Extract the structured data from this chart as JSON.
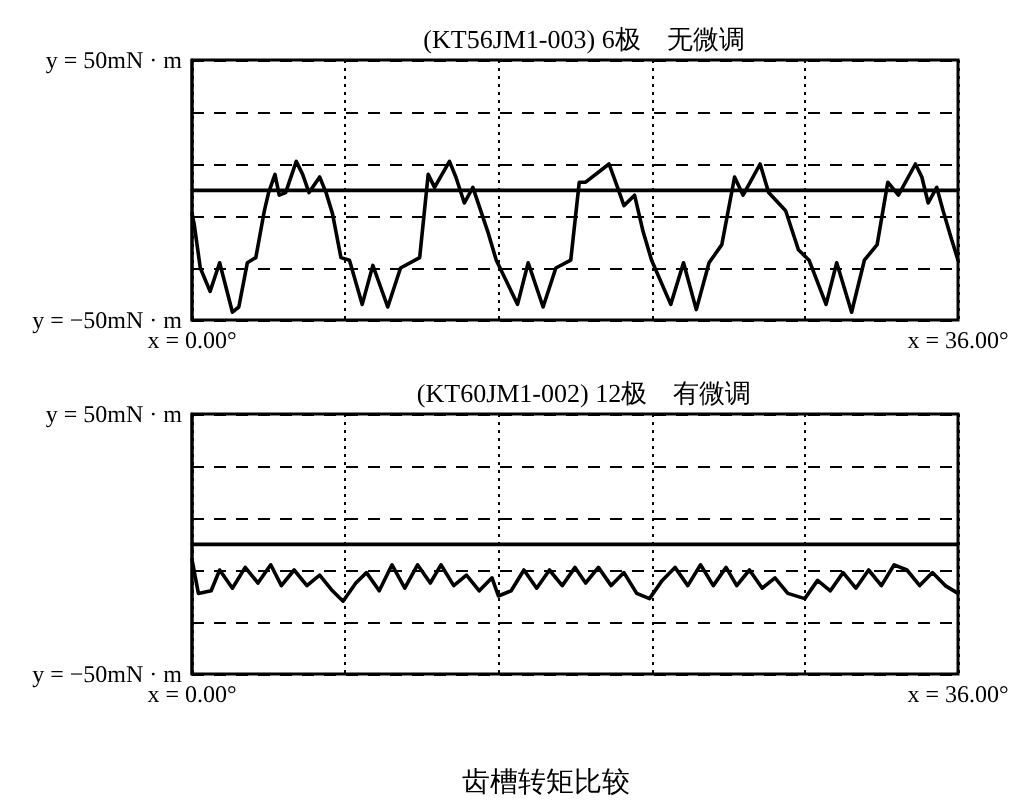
{
  "chart_data": [
    {
      "type": "line",
      "title": "(KT56JM1-003) 6极　无微调",
      "grid": true,
      "xlim": [
        0,
        36
      ],
      "ylim": [
        -50,
        50
      ],
      "xticks": [
        {
          "value": 0,
          "label": "x = 0.00°"
        },
        {
          "value": 7.2,
          "label": null
        },
        {
          "value": 14.4,
          "label": null
        },
        {
          "value": 21.6,
          "label": null
        },
        {
          "value": 28.8,
          "label": null
        },
        {
          "value": 36,
          "label": "x = 36.00°"
        }
      ],
      "yticks": [
        {
          "value": -50,
          "label": "y = −50mN · m"
        },
        {
          "value": -30,
          "label": null
        },
        {
          "value": -10,
          "label": null
        },
        {
          "value": 10,
          "label": null
        },
        {
          "value": 30,
          "label": null
        },
        {
          "value": 50,
          "label": "y = 50mN · m"
        }
      ],
      "ref_lines": [
        {
          "axis": "y",
          "value": 0,
          "label": null,
          "color": "#000000",
          "line_style": "solid"
        }
      ],
      "series": [
        {
          "color": "#000000",
          "x": [
            0,
            0.1,
            0.39,
            0.85,
            1.3,
            1.9,
            2.2,
            2.6,
            3.0,
            3.4,
            3.6,
            3.9,
            4.1,
            4.4,
            4.9,
            5.2,
            5.5,
            6.0,
            6.3,
            6.6,
            7.0,
            7.4,
            8.0,
            8.5,
            9.2,
            9.8,
            10.7,
            11.1,
            11.4,
            12.1,
            12.4,
            12.8,
            13.2,
            13.9,
            14.3,
            15.3,
            15.8,
            16.5,
            17.1,
            17.8,
            18.2,
            18.5,
            19.6,
            20.0,
            20.3,
            20.8,
            21.2,
            21.6,
            22.5,
            23.1,
            23.7,
            24.3,
            24.9,
            25.5,
            25.9,
            26.7,
            27.1,
            27.9,
            28.5,
            29.0,
            29.8,
            30.3,
            31.0,
            31.6,
            32.2,
            32.7,
            33.2,
            34.0,
            34.3,
            34.6,
            35.0,
            35.3,
            35.7,
            36.0
          ],
          "values": [
            -9,
            -13,
            -30,
            -39,
            -28,
            -47,
            -45,
            -28,
            -26,
            -8,
            -1,
            6,
            -2,
            -1,
            11,
            6,
            -1,
            5,
            -1,
            -9,
            -26,
            -27,
            -44,
            -29,
            -45,
            -30,
            -26,
            6,
            1,
            11,
            5,
            -5,
            1,
            -16,
            -27,
            -44,
            -28,
            -45,
            -30,
            -27,
            3,
            3,
            10,
            1,
            -6,
            -2,
            -16,
            -27,
            -44,
            -28,
            -46,
            -28,
            -21,
            5,
            -2,
            10,
            -1,
            -8,
            -23,
            -27,
            -44,
            -28,
            -47,
            -27,
            -21,
            3,
            -2,
            10,
            5,
            -5,
            1,
            -8,
            -19,
            -27
          ]
        }
      ]
    },
    {
      "type": "line",
      "title": "(KT60JM1-002) 12极　有微调",
      "grid": true,
      "xlim": [
        0,
        36
      ],
      "ylim": [
        -50,
        50
      ],
      "xticks": [
        {
          "value": 0,
          "label": "x = 0.00°"
        },
        {
          "value": 7.2,
          "label": null
        },
        {
          "value": 14.4,
          "label": null
        },
        {
          "value": 21.6,
          "label": null
        },
        {
          "value": 28.8,
          "label": null
        },
        {
          "value": 36,
          "label": "x = 36.00°"
        }
      ],
      "yticks": [
        {
          "value": -50,
          "label": "y = −50mN · m"
        },
        {
          "value": -30,
          "label": null
        },
        {
          "value": -10,
          "label": null
        },
        {
          "value": 10,
          "label": null
        },
        {
          "value": 30,
          "label": null
        },
        {
          "value": 50,
          "label": "y = 50mN · m"
        }
      ],
      "ref_lines": [
        {
          "axis": "y",
          "value": 0,
          "label": null,
          "color": "#000000",
          "line_style": "solid"
        }
      ],
      "annotations": [
        "齿槽转矩比较"
      ],
      "series": [
        {
          "color": "#000000",
          "x": [
            0,
            0.3,
            0.9,
            1.3,
            1.9,
            2.5,
            3.1,
            3.7,
            4.2,
            4.8,
            5.4,
            6.0,
            6.6,
            7.1,
            7.7,
            8.2,
            8.8,
            9.4,
            10.0,
            10.6,
            11.2,
            11.7,
            12.3,
            12.9,
            13.5,
            14.1,
            14.4,
            15.0,
            15.6,
            16.2,
            16.8,
            17.4,
            18.0,
            18.5,
            19.1,
            19.7,
            20.3,
            20.9,
            21.5,
            22.1,
            22.7,
            23.3,
            23.9,
            24.5,
            25.1,
            25.6,
            26.2,
            26.8,
            27.4,
            28.0,
            28.8,
            29.4,
            30.0,
            30.6,
            31.2,
            31.8,
            32.4,
            33.0,
            33.6,
            34.2,
            34.8,
            35.4,
            36.0
          ],
          "values": [
            -6,
            -19,
            -18,
            -10,
            -17,
            -9,
            -15,
            -8,
            -16,
            -10,
            -16,
            -12,
            -18,
            -22,
            -15,
            -11,
            -18,
            -8,
            -17,
            -8,
            -15,
            -8,
            -16,
            -12,
            -18,
            -13,
            -20,
            -18,
            -10,
            -17,
            -10,
            -16,
            -9,
            -15,
            -9,
            -16,
            -11,
            -19,
            -21,
            -14,
            -9,
            -16,
            -8,
            -16,
            -9,
            -16,
            -10,
            -17,
            -13,
            -19,
            -21,
            -14,
            -18,
            -11,
            -17,
            -10,
            -16,
            -8,
            -10,
            -16,
            -11,
            -16,
            -19
          ]
        }
      ]
    }
  ]
}
